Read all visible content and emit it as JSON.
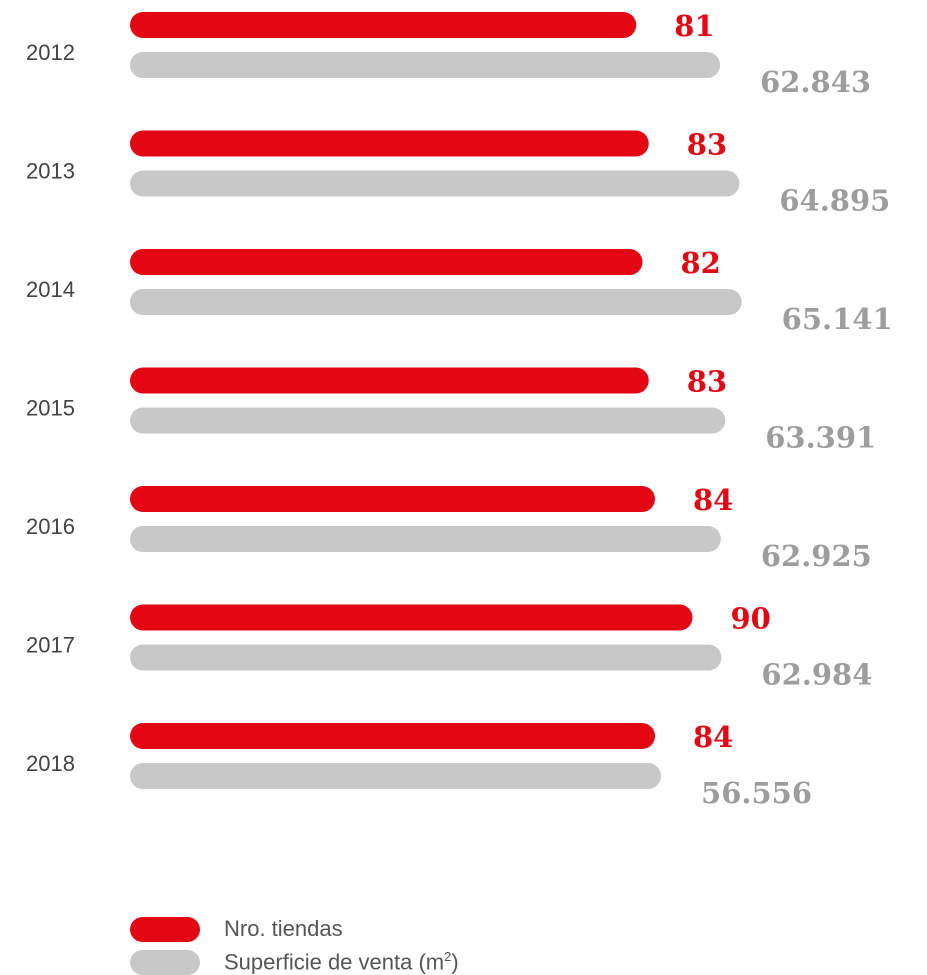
{
  "chart_data": {
    "type": "bar",
    "orientation": "horizontal",
    "categories": [
      "2012",
      "2013",
      "2014",
      "2015",
      "2016",
      "2017",
      "2018"
    ],
    "series": [
      {
        "name": "Nro. tiendas",
        "color": "#e30613",
        "values": [
          81,
          83,
          82,
          83,
          84,
          90,
          84
        ],
        "labels": [
          "81",
          "83",
          "82",
          "83",
          "84",
          "90",
          "84"
        ]
      },
      {
        "name": "Superficie de venta (m²)",
        "color": "#c8c8c8",
        "label_color": "#9d9d9d",
        "values": [
          62843,
          64895,
          65141,
          63391,
          62925,
          62984,
          56556
        ],
        "labels": [
          "62.843",
          "64.895",
          "65.141",
          "63.391",
          "62.925",
          "62.984",
          "56.556"
        ]
      }
    ],
    "legend": "bottom-left",
    "grid": false
  },
  "legend": {
    "tiendas_label": "Nro. tiendas",
    "superficie_label": "Superficie de venta (m",
    "superficie_sup": "2",
    "superficie_close": ")"
  }
}
